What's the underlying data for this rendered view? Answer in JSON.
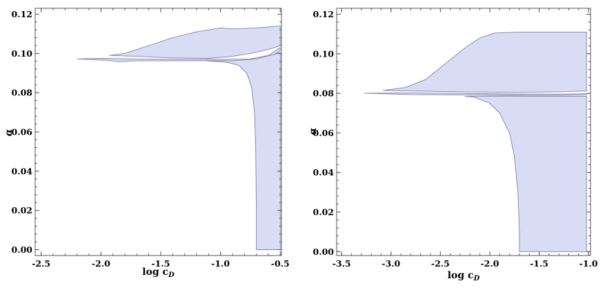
{
  "chart_data": [
    {
      "type": "area",
      "xlabel_var": "log c",
      "xlabel_sub": "D",
      "ylabel": "α",
      "xlim": [
        -2.55,
        -0.49
      ],
      "ylim": [
        -0.003,
        0.123
      ],
      "x_ticks": [
        -2.5,
        -2.0,
        -1.5,
        -1.0,
        -0.5
      ],
      "x_tick_labels": [
        "-2.5",
        "-2.0",
        "-1.5",
        "-1.0",
        "-0.5"
      ],
      "y_ticks": [
        0.0,
        0.02,
        0.04,
        0.06,
        0.08,
        0.1,
        0.12
      ],
      "y_tick_labels": [
        "0.00",
        "0.02",
        "0.04",
        "0.06",
        "0.08",
        "0.10",
        "0.12"
      ],
      "fill_color": "#d9dcf5",
      "edge_color": "#7f83a6",
      "regions": [
        [
          [
            -1.93,
            0.099
          ],
          [
            -1.8,
            0.1
          ],
          [
            -1.6,
            0.104
          ],
          [
            -1.4,
            0.108
          ],
          [
            -1.2,
            0.111
          ],
          [
            -1.0,
            0.113
          ],
          [
            -0.9,
            0.1125
          ],
          [
            -0.7,
            0.113
          ],
          [
            -0.5,
            0.114
          ],
          [
            -0.5,
            0.104
          ],
          [
            -0.6,
            0.102
          ],
          [
            -0.75,
            0.1
          ],
          [
            -0.9,
            0.0985
          ],
          [
            -1.1,
            0.0975
          ],
          [
            -1.4,
            0.0977
          ],
          [
            -1.7,
            0.0985
          ],
          [
            -1.93,
            0.099
          ]
        ],
        [
          [
            -2.2,
            0.0972
          ],
          [
            -2.0,
            0.0975
          ],
          [
            -1.7,
            0.0972
          ],
          [
            -1.4,
            0.097
          ],
          [
            -1.0,
            0.097
          ],
          [
            -0.75,
            0.0972
          ],
          [
            -0.6,
            0.099
          ],
          [
            -0.5,
            0.103
          ],
          [
            -0.5,
            0.1015
          ],
          [
            -0.6,
            0.0975
          ],
          [
            -0.75,
            0.096
          ],
          [
            -1.0,
            0.0962
          ],
          [
            -1.4,
            0.0963
          ],
          [
            -1.7,
            0.0962
          ],
          [
            -1.85,
            0.0958
          ],
          [
            -1.95,
            0.0965
          ],
          [
            -2.2,
            0.0972
          ]
        ],
        [
          [
            -1.12,
            0.0962
          ],
          [
            -0.95,
            0.0955
          ],
          [
            -0.85,
            0.094
          ],
          [
            -0.78,
            0.09
          ],
          [
            -0.74,
            0.083
          ],
          [
            -0.715,
            0.07
          ],
          [
            -0.705,
            0.05
          ],
          [
            -0.7,
            0.02
          ],
          [
            -0.7,
            0.0
          ],
          [
            -0.5,
            0.0
          ],
          [
            -0.5,
            0.1005
          ],
          [
            -0.55,
            0.0995
          ],
          [
            -0.7,
            0.0972
          ],
          [
            -0.9,
            0.0962
          ],
          [
            -1.12,
            0.0962
          ]
        ]
      ]
    },
    {
      "type": "area",
      "xlabel_var": "log c",
      "xlabel_sub": "D",
      "ylabel": "α",
      "xlim": [
        -3.55,
        -0.98
      ],
      "ylim": [
        -0.002,
        0.123
      ],
      "x_ticks": [
        -3.5,
        -3.0,
        -2.5,
        -2.0,
        -1.5,
        -1.0
      ],
      "x_tick_labels": [
        "-3.5",
        "-3.0",
        "-2.5",
        "-2.0",
        "-1.5",
        "-1.0"
      ],
      "y_ticks": [
        0.0,
        0.02,
        0.04,
        0.06,
        0.08,
        0.1,
        0.12
      ],
      "y_tick_labels": [
        "0.00",
        "0.02",
        "0.04",
        "0.06",
        "0.08",
        "0.10",
        "0.12"
      ],
      "fill_color": "#d9dcf5",
      "edge_color": "#7f83a6",
      "regions": [
        [
          [
            -3.08,
            0.0815
          ],
          [
            -2.85,
            0.083
          ],
          [
            -2.65,
            0.087
          ],
          [
            -2.45,
            0.095
          ],
          [
            -2.25,
            0.103
          ],
          [
            -2.1,
            0.108
          ],
          [
            -1.95,
            0.1105
          ],
          [
            -1.7,
            0.111
          ],
          [
            -1.3,
            0.111
          ],
          [
            -1.02,
            0.111
          ],
          [
            -1.02,
            0.0812
          ],
          [
            -1.3,
            0.0808
          ],
          [
            -1.8,
            0.0805
          ],
          [
            -2.3,
            0.0808
          ],
          [
            -2.8,
            0.0812
          ],
          [
            -3.08,
            0.0815
          ]
        ],
        [
          [
            -3.27,
            0.0801
          ],
          [
            -2.8,
            0.0802
          ],
          [
            -2.3,
            0.08
          ],
          [
            -1.8,
            0.0797
          ],
          [
            -1.3,
            0.0796
          ],
          [
            -1.02,
            0.0798
          ],
          [
            -1.02,
            0.0792
          ],
          [
            -1.3,
            0.079
          ],
          [
            -1.8,
            0.079
          ],
          [
            -2.3,
            0.0792
          ],
          [
            -2.8,
            0.0794
          ],
          [
            -3.27,
            0.0801
          ]
        ],
        [
          [
            -2.25,
            0.0785
          ],
          [
            -2.15,
            0.078
          ],
          [
            -2.0,
            0.075
          ],
          [
            -1.9,
            0.07
          ],
          [
            -1.8,
            0.06
          ],
          [
            -1.75,
            0.048
          ],
          [
            -1.715,
            0.03
          ],
          [
            -1.7,
            0.01
          ],
          [
            -1.7,
            0.0
          ],
          [
            -1.02,
            0.0
          ],
          [
            -1.02,
            0.0785
          ],
          [
            -1.3,
            0.0785
          ],
          [
            -1.8,
            0.0786
          ],
          [
            -2.25,
            0.0785
          ]
        ]
      ]
    }
  ]
}
